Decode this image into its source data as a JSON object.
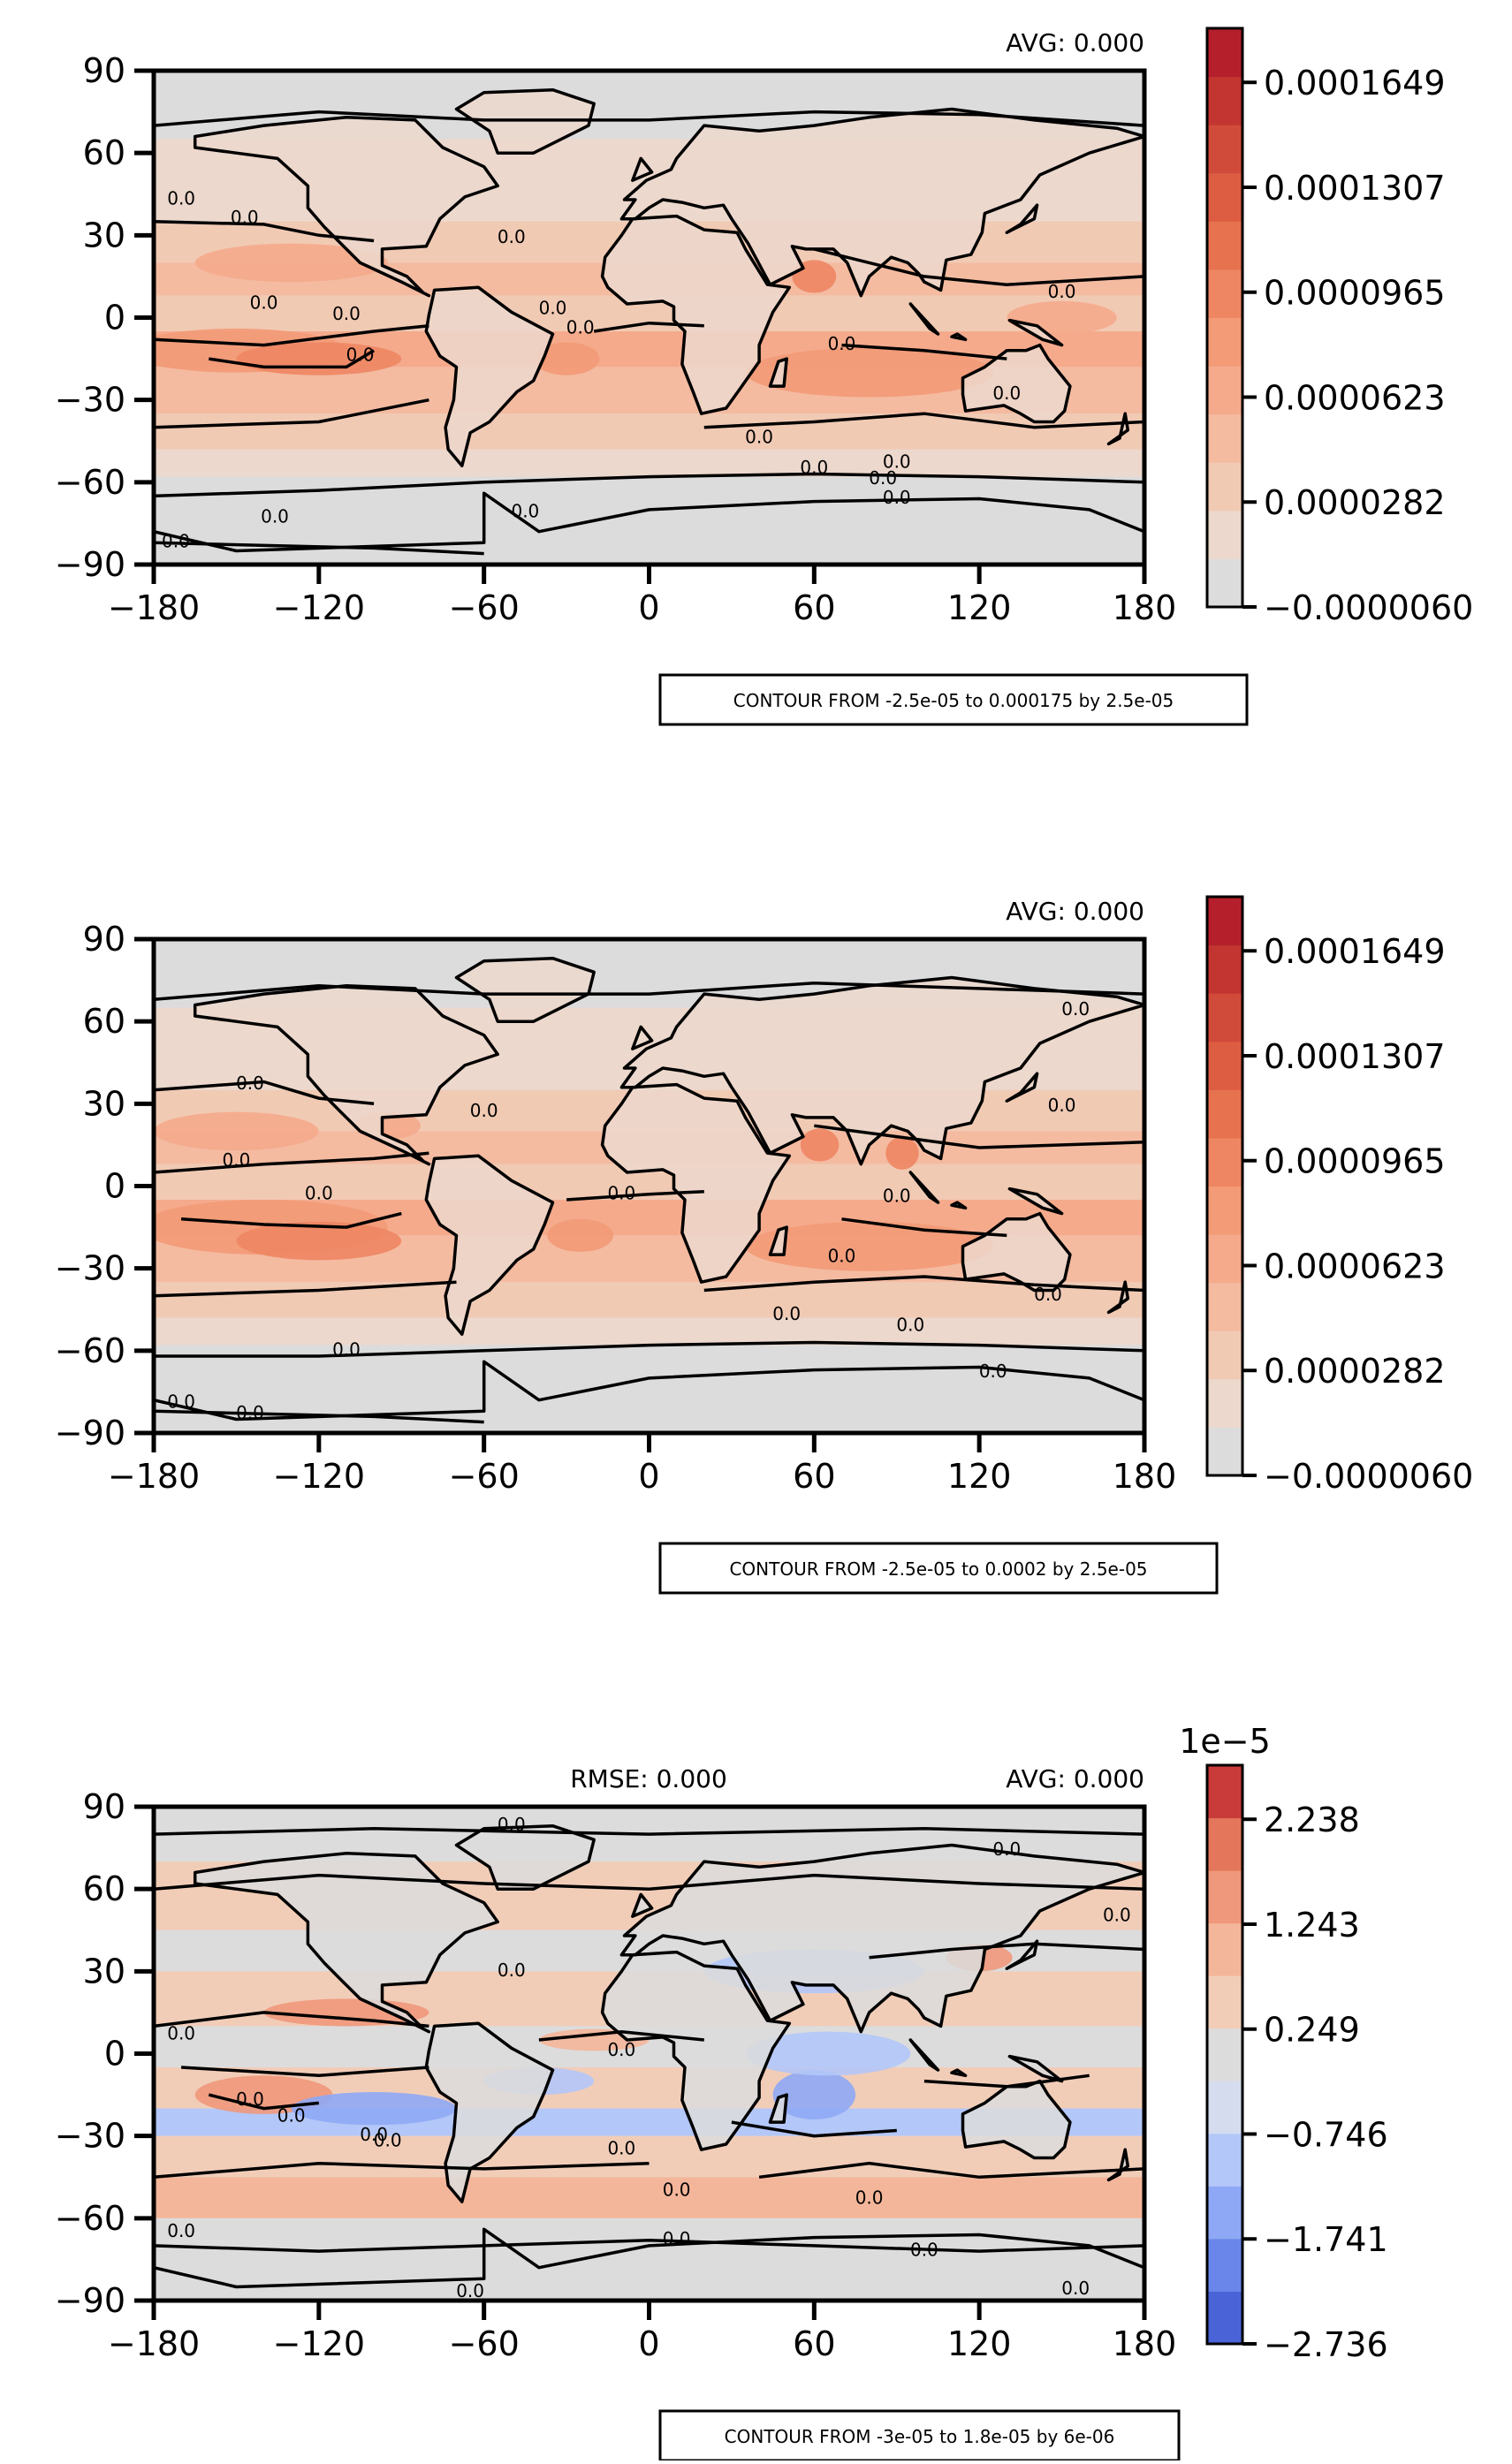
{
  "chart_data": [
    {
      "type": "heatmap",
      "title": "",
      "avg_label": "AVG: 0.000",
      "x_ticks": [
        "−180",
        "−120",
        "−60",
        "0",
        "60",
        "120",
        "180"
      ],
      "y_ticks": [
        "90",
        "60",
        "30",
        "0",
        "−30",
        "−60",
        "−90"
      ],
      "xlim": [
        -180,
        180
      ],
      "ylim": [
        -90,
        90
      ],
      "colorbar": {
        "colormap": "coolwarm",
        "ticks": [
          "0.0001649",
          "0.0001307",
          "0.0000965",
          "0.0000623",
          "0.0000282",
          "−0.0000060"
        ],
        "levels": 12,
        "range": [
          -6e-06,
          0.000182
        ],
        "colors": [
          "#dcdcdc",
          "#ecd8cc",
          "#f1cab4",
          "#f4bba1",
          "#f5aa8c",
          "#f39a77",
          "#ee8663",
          "#e6724f",
          "#dc5d42",
          "#d04b3a",
          "#c23530",
          "#b41f2b"
        ],
        "offset_label": ""
      },
      "contour_box": "CONTOUR FROM -2.5e-05 to 0.000175 by 2.5e-05",
      "contour_label": "0.0"
    },
    {
      "type": "heatmap",
      "title": "",
      "avg_label": "AVG: 0.000",
      "x_ticks": [
        "−180",
        "−120",
        "−60",
        "0",
        "60",
        "120",
        "180"
      ],
      "y_ticks": [
        "90",
        "60",
        "30",
        "0",
        "−30",
        "−60",
        "−90"
      ],
      "xlim": [
        -180,
        180
      ],
      "ylim": [
        -90,
        90
      ],
      "colorbar": {
        "colormap": "coolwarm",
        "ticks": [
          "0.0001649",
          "0.0001307",
          "0.0000965",
          "0.0000623",
          "0.0000282",
          "−0.0000060"
        ],
        "levels": 12,
        "range": [
          -6e-06,
          0.000182
        ],
        "colors": [
          "#dcdcdc",
          "#ecd8cc",
          "#f1cab4",
          "#f4bba1",
          "#f5aa8c",
          "#f39a77",
          "#ee8663",
          "#e6724f",
          "#dc5d42",
          "#d04b3a",
          "#c23530",
          "#b41f2b"
        ],
        "offset_label": ""
      },
      "contour_box": "CONTOUR FROM -2.5e-05 to 0.0002 by 2.5e-05",
      "contour_label": "0.0"
    },
    {
      "type": "heatmap",
      "title": "",
      "rmse_label": "RMSE: 0.000",
      "avg_label": "AVG: 0.000",
      "x_ticks": [
        "−180",
        "−120",
        "−60",
        "0",
        "60",
        "120",
        "180"
      ],
      "y_ticks": [
        "90",
        "60",
        "30",
        "0",
        "−30",
        "−60",
        "−90"
      ],
      "xlim": [
        -180,
        180
      ],
      "ylim": [
        -90,
        90
      ],
      "colorbar": {
        "colormap": "coolwarm",
        "ticks": [
          "2.238",
          "1.243",
          "0.249",
          "−0.746",
          "−1.741",
          "−2.736"
        ],
        "levels": 11,
        "range": [
          -2.736,
          2.736
        ],
        "colors": [
          "#4a63d6",
          "#6a86ea",
          "#8ea8f5",
          "#b3c7f8",
          "#d5dcee",
          "#dcdcdc",
          "#f1cdb8",
          "#f4b69a",
          "#ef987b",
          "#e3765b",
          "#c93a3a"
        ],
        "offset_label": "1e−5"
      },
      "contour_box": "CONTOUR FROM -3e-05 to 1.8e-05 by 6e-06",
      "contour_label": "0.0"
    }
  ]
}
